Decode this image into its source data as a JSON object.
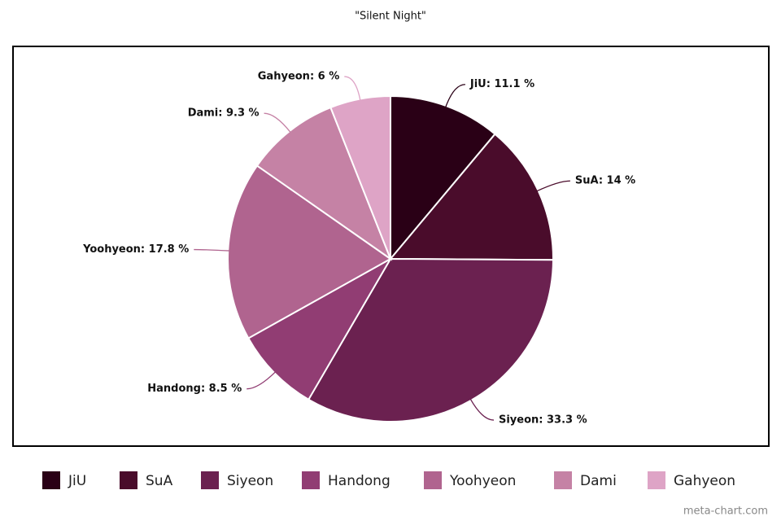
{
  "chart_data": {
    "type": "pie",
    "title": "\"Silent Night\"",
    "categories": [
      "JiU",
      "SuA",
      "Siyeon",
      "Handong",
      "Yoohyeon",
      "Dami",
      "Gahyeon"
    ],
    "values": [
      11.1,
      14,
      33.3,
      8.5,
      17.8,
      9.3,
      6
    ],
    "value_labels": [
      "JiU: 11.1 %",
      "SuA: 14 %",
      "Siyeon: 33.3 %",
      "Handong: 8.5 %",
      "Yoohyeon: 17.8 %",
      "Dami: 9.3 %",
      "Gahyeon: 6 %"
    ],
    "colors": [
      "#2a0016",
      "#4a0c2b",
      "#6b2150",
      "#913d73",
      "#b0648f",
      "#c582a5",
      "#dea4c6"
    ],
    "legend": "bottom",
    "watermark": "meta-chart.com"
  }
}
